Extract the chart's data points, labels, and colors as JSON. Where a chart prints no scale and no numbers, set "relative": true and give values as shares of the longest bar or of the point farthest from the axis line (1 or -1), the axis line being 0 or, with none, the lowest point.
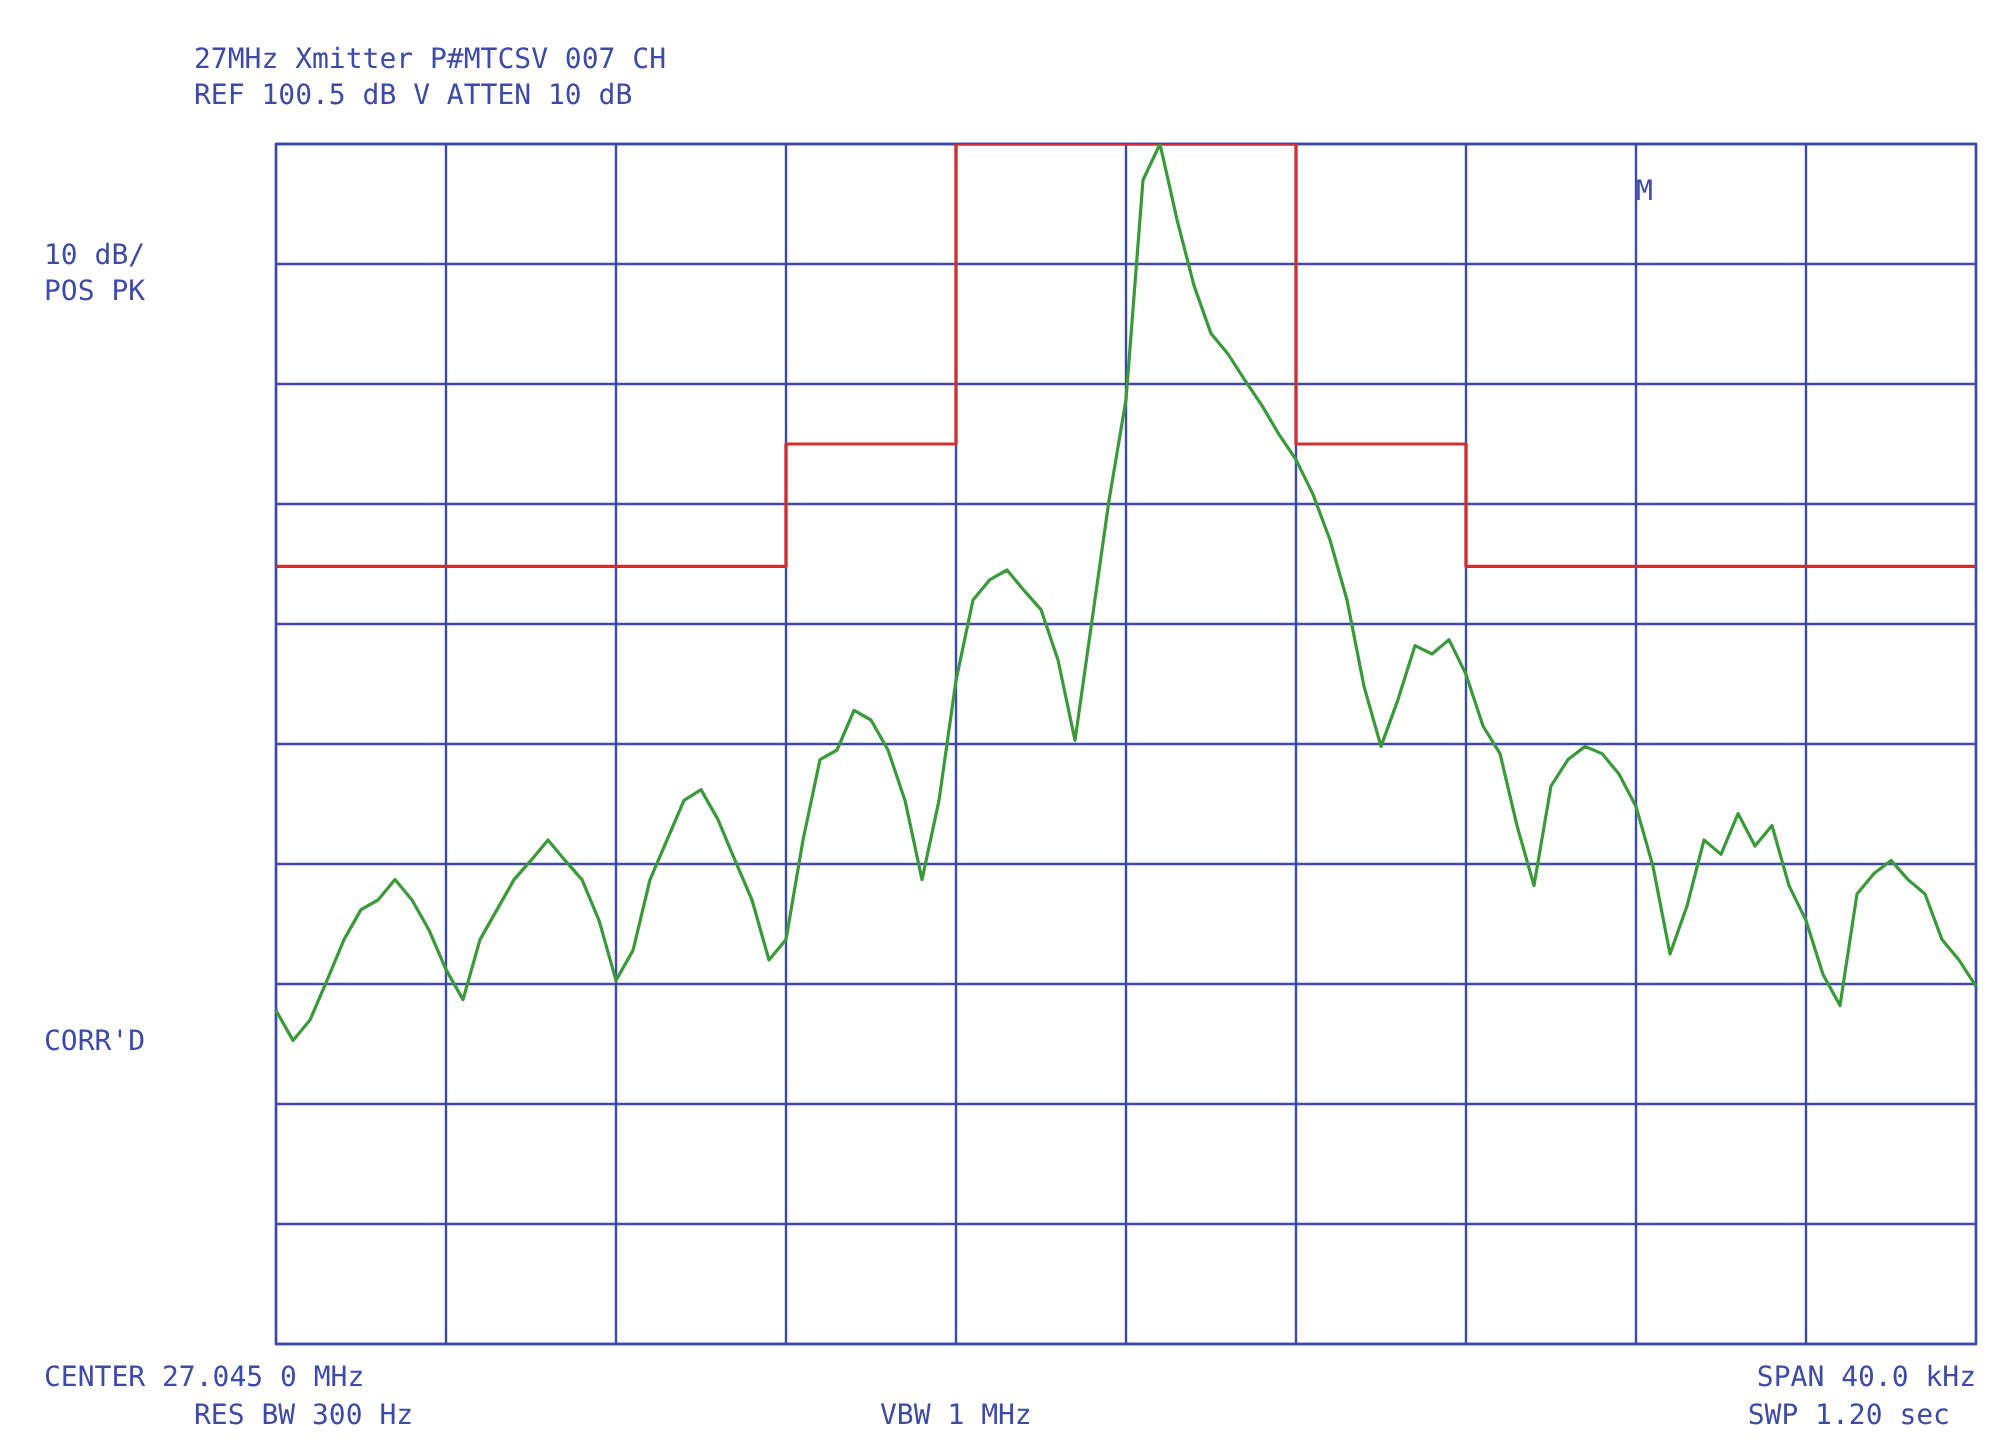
{
  "chart_data": {
    "type": "line",
    "title": "27MHz Xmitter P#MTCSV 007 CH",
    "subtitle": "REF 100.5 dB V ATTEN 10 dB",
    "annotations": [
      "10 dB/",
      "POS PK",
      "CORR'D",
      "M",
      "CENTER 27.045 0 MHz",
      "RES BW 300 Hz",
      "VBW 1 MHz",
      "SPAN 40.0 kHz",
      "SWP 1.20 sec"
    ],
    "relative": true,
    "grid": true,
    "marker": "none",
    "categories": [
      null,
      null,
      null,
      null,
      null,
      null,
      null,
      null,
      null,
      null,
      null,
      null,
      null,
      null,
      null,
      null,
      null,
      null,
      null,
      null,
      null,
      null,
      null,
      null,
      null,
      null,
      null,
      null,
      null,
      null,
      null,
      null,
      null,
      null,
      null,
      null,
      null,
      null,
      null,
      null,
      null,
      null,
      null,
      null,
      null,
      null,
      null,
      null,
      null,
      null,
      null,
      null,
      null,
      null,
      null,
      null,
      null,
      null,
      null,
      null,
      null,
      null,
      null,
      null,
      null,
      null,
      null,
      null,
      null,
      null,
      null,
      null,
      null,
      null,
      null,
      null,
      null,
      null,
      null,
      null,
      null,
      null,
      null,
      null,
      null,
      null,
      null,
      null,
      null,
      null,
      null,
      null,
      null,
      null,
      null,
      null,
      null,
      null,
      null,
      null,
      null
    ],
    "series": [
      {
        "color": "#3a9a3a",
        "values": [
          0.278,
          0.253,
          0.27,
          0.303,
          0.337,
          0.362,
          0.37,
          0.387,
          0.37,
          0.345,
          0.312,
          0.287,
          0.337,
          0.362,
          0.387,
          0.403,
          0.42,
          0.403,
          0.387,
          0.353,
          0.303,
          0.328,
          0.387,
          0.42,
          0.453,
          0.462,
          0.437,
          0.403,
          0.37,
          0.32,
          0.337,
          0.42,
          0.487,
          0.495,
          0.528,
          0.52,
          0.495,
          0.453,
          0.387,
          0.453,
          0.553,
          0.62,
          0.637,
          0.645,
          0.628,
          0.612,
          0.57,
          0.503,
          0.603,
          0.703,
          0.787,
          0.97,
          1,
          0.937,
          0.882,
          0.842,
          0.825,
          0.803,
          0.782,
          0.758,
          0.737,
          0.708,
          0.67,
          0.62,
          0.548,
          0.498,
          0.537,
          0.582,
          0.575,
          0.587,
          0.558,
          0.515,
          0.492,
          0.432,
          0.382,
          0.465,
          0.487,
          0.498,
          0.492,
          0.475,
          0.448,
          0.398,
          0.325,
          0.365,
          0.42,
          0.408,
          0.442,
          0.415,
          0.432,
          0.382,
          0.353,
          0.308,
          0.282,
          0.375,
          0.392,
          0.403,
          0.387,
          0.375,
          0.337,
          0.32,
          0.298
        ]
      },
      {
        "type": "step",
        "color": "#d03030",
        "values": [
          0.648,
          0.648,
          0.648,
          0.648,
          0.648,
          0.648,
          0.648,
          0.648,
          0.648,
          0.648,
          0.648,
          0.648,
          0.648,
          0.648,
          0.648,
          0.648,
          0.648,
          0.648,
          0.648,
          0.648,
          0.648,
          0.648,
          0.648,
          0.648,
          0.648,
          0.648,
          0.648,
          0.648,
          0.648,
          0.648,
          0.75,
          0.75,
          0.75,
          0.75,
          0.75,
          0.75,
          0.75,
          0.75,
          0.75,
          0.75,
          1,
          1,
          1,
          1,
          1,
          1,
          1,
          1,
          1,
          1,
          1,
          1,
          1,
          1,
          1,
          1,
          1,
          1,
          1,
          1,
          0.75,
          0.75,
          0.75,
          0.75,
          0.75,
          0.75,
          0.75,
          0.75,
          0.75,
          0.75,
          0.648,
          0.648,
          0.648,
          0.648,
          0.648,
          0.648,
          0.648,
          0.648,
          0.648,
          0.648,
          0.648,
          0.648,
          0.648,
          0.648,
          0.648,
          0.648,
          0.648,
          0.648,
          0.648,
          0.648,
          0.648,
          0.648,
          0.648,
          0.648,
          0.648,
          0.648,
          0.648,
          0.648,
          0.648,
          0.648,
          0.648
        ]
      }
    ]
  }
}
